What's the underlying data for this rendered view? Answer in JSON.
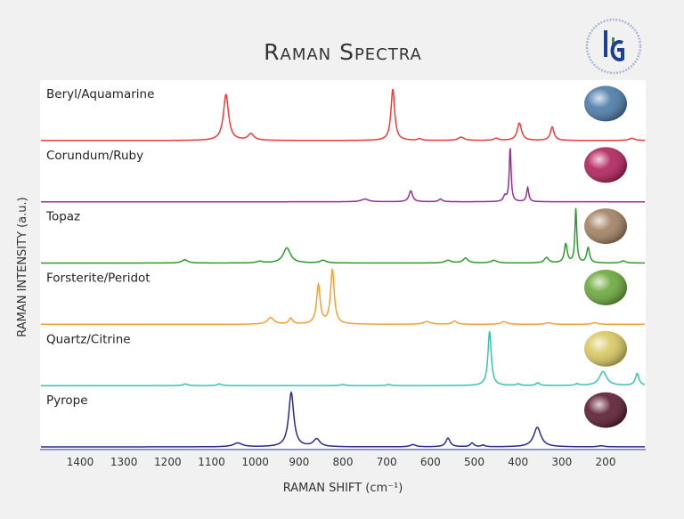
{
  "chart_data": {
    "type": "line",
    "title": "Raman Spectra",
    "xlabel": "RAMAN SHIFT (cm⁻¹)",
    "ylabel": "RAMAN INTENSITY (a.u.)",
    "x_reversed": true,
    "xlim": [
      1490,
      105
    ],
    "xticks": [
      1400,
      1300,
      1200,
      1100,
      1000,
      900,
      800,
      700,
      600,
      500,
      400,
      300,
      200
    ],
    "layout": "stacked panels",
    "grid": false,
    "series": [
      {
        "name": "Beryl/Aquamarine",
        "color": "#ef3b3b",
        "gem_color": "#4a7aa8",
        "peaks": [
          [
            1067,
            0.85,
            7
          ],
          [
            1010,
            0.12,
            8
          ],
          [
            686,
            0.95,
            5
          ],
          [
            625,
            0.03,
            5
          ],
          [
            530,
            0.06,
            8
          ],
          [
            450,
            0.04,
            6
          ],
          [
            397,
            0.32,
            6
          ],
          [
            322,
            0.25,
            5
          ],
          [
            140,
            0.04,
            8
          ]
        ]
      },
      {
        "name": "Corundum/Ruby",
        "color": "#9a2c9a",
        "gem_color": "#b0205a",
        "peaks": [
          [
            750,
            0.05,
            10
          ],
          [
            645,
            0.2,
            5
          ],
          [
            577,
            0.05,
            5
          ],
          [
            430,
            0.1,
            4
          ],
          [
            418,
            1.0,
            2.5
          ],
          [
            378,
            0.26,
            3
          ]
        ]
      },
      {
        "name": "Topaz",
        "color": "#2e9a2e",
        "gem_color": "#a08060",
        "peaks": [
          [
            1161,
            0.06,
            8
          ],
          [
            990,
            0.03,
            8
          ],
          [
            928,
            0.28,
            10
          ],
          [
            845,
            0.05,
            8
          ],
          [
            560,
            0.05,
            8
          ],
          [
            520,
            0.09,
            7
          ],
          [
            455,
            0.05,
            8
          ],
          [
            335,
            0.1,
            6
          ],
          [
            291,
            0.35,
            4
          ],
          [
            268,
            1.0,
            2.5
          ],
          [
            240,
            0.28,
            4
          ],
          [
            160,
            0.04,
            6
          ]
        ]
      },
      {
        "name": "Forsterite/Peridot",
        "color": "#f4a034",
        "gem_color": "#6aa83a",
        "peaks": [
          [
            965,
            0.12,
            9
          ],
          [
            919,
            0.11,
            5
          ],
          [
            856,
            0.72,
            5
          ],
          [
            824,
            1.0,
            5
          ],
          [
            608,
            0.05,
            10
          ],
          [
            545,
            0.06,
            6
          ],
          [
            432,
            0.05,
            8
          ],
          [
            330,
            0.03,
            8
          ],
          [
            225,
            0.03,
            8
          ]
        ]
      },
      {
        "name": "Quartz/Citrine",
        "color": "#36c4b0",
        "gem_color": "#d8c860",
        "peaks": [
          [
            1160,
            0.03,
            6
          ],
          [
            1082,
            0.03,
            6
          ],
          [
            800,
            0.02,
            6
          ],
          [
            696,
            0.02,
            6
          ],
          [
            465,
            1.0,
            4.5
          ],
          [
            400,
            0.03,
            5
          ],
          [
            355,
            0.05,
            5
          ],
          [
            265,
            0.03,
            5
          ],
          [
            206,
            0.26,
            10
          ],
          [
            128,
            0.22,
            5
          ]
        ]
      },
      {
        "name": "Pyrope",
        "color": "#2a2a8a",
        "gem_color": "#5a1a30",
        "peaks": [
          [
            1040,
            0.07,
            12
          ],
          [
            918,
            1.0,
            7
          ],
          [
            860,
            0.14,
            9
          ],
          [
            640,
            0.04,
            8
          ],
          [
            560,
            0.16,
            6
          ],
          [
            505,
            0.07,
            5
          ],
          [
            480,
            0.03,
            5
          ],
          [
            356,
            0.36,
            10
          ],
          [
            210,
            0.02,
            8
          ]
        ]
      }
    ]
  }
}
